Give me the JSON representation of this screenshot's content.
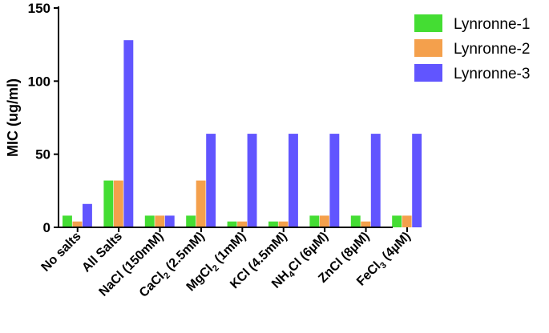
{
  "chart_data": {
    "type": "bar",
    "title": "",
    "xlabel": "",
    "ylabel": "MIC  (ug/ml)",
    "ylim": [
      0,
      150
    ],
    "yticks": [
      0,
      50,
      100,
      150
    ],
    "categories": [
      {
        "main": "No salts",
        "sub": "",
        "tail": ""
      },
      {
        "main": "All Salts",
        "sub": "",
        "tail": ""
      },
      {
        "main": "NaCl (150mM)",
        "sub": "",
        "tail": ""
      },
      {
        "main": "CaCl",
        "sub": "2",
        "tail": " (2.5mM)"
      },
      {
        "main": "MgCl",
        "sub": "2",
        "tail": " (1mM)"
      },
      {
        "main": "KCl (4.5mM)",
        "sub": "",
        "tail": ""
      },
      {
        "main": "NH",
        "sub": "4",
        "tail": "Cl (6µM)"
      },
      {
        "main": "ZnCl (8µM)",
        "sub": "",
        "tail": ""
      },
      {
        "main": "FeCl",
        "sub": "3",
        "tail": " (4µM)"
      }
    ],
    "series": [
      {
        "name": "Lynronne-1",
        "color": "#44dd33",
        "values": [
          8,
          32,
          8,
          8,
          4,
          4,
          8,
          8,
          8
        ]
      },
      {
        "name": "Lynronne-2",
        "color": "#f4a04c",
        "values": [
          4,
          32,
          8,
          32,
          4,
          4,
          8,
          4,
          8
        ]
      },
      {
        "name": "Lynronne-3",
        "color": "#6155ff",
        "values": [
          16,
          128,
          8,
          64,
          64,
          64,
          64,
          64,
          64
        ]
      }
    ],
    "legend_position": "top-right",
    "grid": false
  }
}
